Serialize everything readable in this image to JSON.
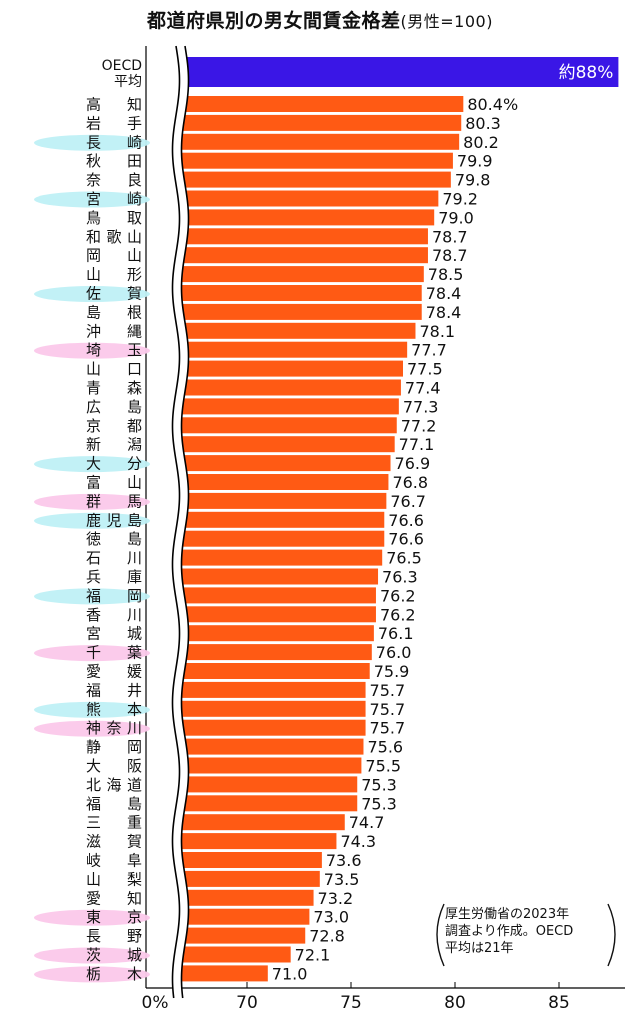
{
  "chart_data": {
    "type": "bar",
    "orientation": "horizontal",
    "title": "都道府県別の男女間賃金格差",
    "subtitle": "(男性=100)",
    "axis": {
      "ticks": [
        "0%",
        "70",
        "75",
        "80",
        "85"
      ],
      "break": "0–66",
      "xlim": [
        66,
        88
      ]
    },
    "reference": {
      "label": "OECD\n平均",
      "value_label": "約88%",
      "value": 88,
      "color": "#3a16e6"
    },
    "bar_color": "#ff5a14",
    "highlight_colors": {
      "cyan": "#bff0f6",
      "pink": "#fbc8ea"
    },
    "categories": [
      "高　知",
      "岩　手",
      "長　崎",
      "秋　田",
      "奈　良",
      "宮　崎",
      "鳥　取",
      "和歌山",
      "岡　山",
      "山　形",
      "佐　賀",
      "島　根",
      "沖　縄",
      "埼　玉",
      "山　口",
      "青　森",
      "広　島",
      "京　都",
      "新　潟",
      "大　分",
      "富　山",
      "群　馬",
      "鹿児島",
      "徳　島",
      "石　川",
      "兵　庫",
      "福　岡",
      "香　川",
      "宮　城",
      "千　葉",
      "愛　媛",
      "福　井",
      "熊　本",
      "神奈川",
      "静　岡",
      "大　阪",
      "北海道",
      "福　島",
      "三　重",
      "滋　賀",
      "岐　阜",
      "山　梨",
      "愛　知",
      "東　京",
      "長　野",
      "茨　城",
      "栃　木"
    ],
    "values": [
      80.4,
      80.3,
      80.2,
      79.9,
      79.8,
      79.2,
      79.0,
      78.7,
      78.7,
      78.5,
      78.4,
      78.4,
      78.1,
      77.7,
      77.5,
      77.4,
      77.3,
      77.2,
      77.1,
      76.9,
      76.8,
      76.7,
      76.6,
      76.6,
      76.5,
      76.3,
      76.2,
      76.2,
      76.1,
      76.0,
      75.9,
      75.7,
      75.7,
      75.7,
      75.6,
      75.5,
      75.3,
      75.3,
      74.7,
      74.3,
      73.6,
      73.5,
      73.2,
      73.0,
      72.8,
      72.1,
      71.0
    ],
    "value_labels": [
      "80.4%",
      "80.3",
      "80.2",
      "79.9",
      "79.8",
      "79.2",
      "79.0",
      "78.7",
      "78.7",
      "78.5",
      "78.4",
      "78.4",
      "78.1",
      "77.7",
      "77.5",
      "77.4",
      "77.3",
      "77.2",
      "77.1",
      "76.9",
      "76.8",
      "76.7",
      "76.6",
      "76.6",
      "76.5",
      "76.3",
      "76.2",
      "76.2",
      "76.1",
      "76.0",
      "75.9",
      "75.7",
      "75.7",
      "75.7",
      "75.6",
      "75.5",
      "75.3",
      "75.3",
      "74.7",
      "74.3",
      "73.6",
      "73.5",
      "73.2",
      "73.0",
      "72.8",
      "72.1",
      "71.0"
    ],
    "highlights": [
      "none",
      "none",
      "cyan",
      "none",
      "none",
      "cyan",
      "none",
      "none",
      "none",
      "none",
      "cyan",
      "none",
      "none",
      "pink",
      "none",
      "none",
      "none",
      "none",
      "none",
      "cyan",
      "none",
      "pink",
      "cyan",
      "none",
      "none",
      "none",
      "cyan",
      "none",
      "none",
      "pink",
      "none",
      "none",
      "cyan",
      "pink",
      "none",
      "none",
      "none",
      "none",
      "none",
      "none",
      "none",
      "none",
      "none",
      "pink",
      "none",
      "pink",
      "pink"
    ],
    "note": [
      "厚生労働省の2023年",
      "調査より作成。OECD",
      "平均は21年"
    ]
  }
}
